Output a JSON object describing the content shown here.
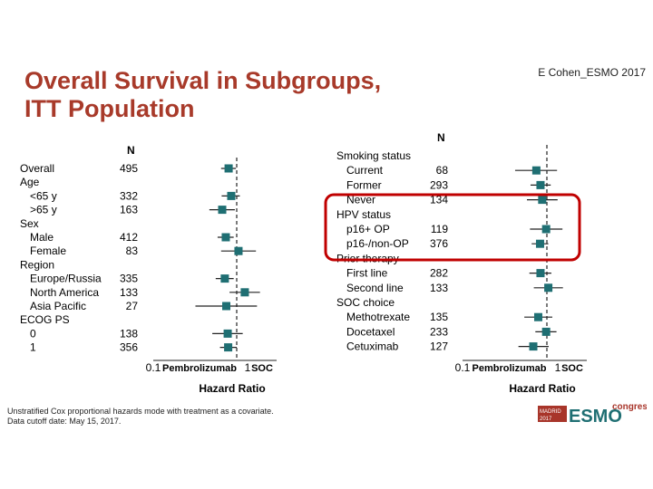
{
  "slide": {
    "title_line1": "Overall Survival in Subgroups,",
    "title_line2": "ITT Population",
    "credit": "E Cohen_ESMO 2017",
    "footnote_line1": "Unstratified Cox proportional hazards mode with treatment as a covariate.",
    "footnote_line2": "Data cutoff date: May 15, 2017."
  },
  "logo": {
    "madrid": "MADRID",
    "year": "2017",
    "esmo": "ESMO",
    "congress": "congress",
    "colors": {
      "red": "#a8352a",
      "teal": "#1f6f73"
    }
  },
  "colors": {
    "marker": "#1f6f73",
    "highlight_box": "#c00000",
    "title": "#a83a2a"
  },
  "chart_data": [
    {
      "type": "forest",
      "n_header": "N",
      "xscale": "log",
      "xlim": [
        0.1,
        2
      ],
      "reference_line": 1,
      "ticks": [
        "0.1",
        "Pembrolizumab",
        "1",
        "SOC"
      ],
      "xlabel": "Hazard Ratio",
      "rows": [
        {
          "label": "Overall",
          "n": "495",
          "hr": 0.8,
          "lo": 0.65,
          "hi": 0.98,
          "indent": false
        },
        {
          "label": "Age",
          "n": "",
          "hr": null,
          "indent": false
        },
        {
          "label": "<65 y",
          "n": "332",
          "hr": 0.86,
          "lo": 0.66,
          "hi": 1.09,
          "indent": true
        },
        {
          "label": ">65 y",
          "n": "163",
          "hr": 0.67,
          "lo": 0.47,
          "hi": 0.95,
          "indent": true
        },
        {
          "label": "Sex",
          "n": "",
          "hr": null,
          "indent": false
        },
        {
          "label": "Male",
          "n": "412",
          "hr": 0.74,
          "lo": 0.59,
          "hi": 0.92,
          "indent": true
        },
        {
          "label": "Female",
          "n": "83",
          "hr": 1.05,
          "lo": 0.65,
          "hi": 1.7,
          "indent": true
        },
        {
          "label": "Region",
          "n": "",
          "hr": null,
          "indent": false
        },
        {
          "label": "Europe/Russia",
          "n": "335",
          "hr": 0.72,
          "lo": 0.56,
          "hi": 0.92,
          "indent": true
        },
        {
          "label": "North America",
          "n": "133",
          "hr": 1.25,
          "lo": 0.82,
          "hi": 1.9,
          "indent": true
        },
        {
          "label": "Asia Pacific",
          "n": "27",
          "hr": 0.75,
          "lo": 0.32,
          "hi": 1.75,
          "indent": true
        },
        {
          "label": "ECOG PS",
          "n": "",
          "hr": null,
          "indent": false
        },
        {
          "label": "0",
          "n": "138",
          "hr": 0.78,
          "lo": 0.51,
          "hi": 1.18,
          "indent": true
        },
        {
          "label": "1",
          "n": "356",
          "hr": 0.79,
          "lo": 0.63,
          "hi": 1.0,
          "indent": true
        }
      ]
    },
    {
      "type": "forest",
      "n_header": "N",
      "xscale": "log",
      "xlim": [
        0.1,
        2
      ],
      "reference_line": 1,
      "ticks": [
        "0.1",
        "Pembrolizumab",
        "1",
        "SOC"
      ],
      "xlabel": "Hazard Ratio",
      "rows": [
        {
          "label": "Smoking status",
          "n": "",
          "hr": null,
          "indent": false
        },
        {
          "label": "Current",
          "n": "68",
          "hr": 0.75,
          "lo": 0.42,
          "hi": 1.32,
          "indent": true
        },
        {
          "label": "Former",
          "n": "293",
          "hr": 0.84,
          "lo": 0.64,
          "hi": 1.11,
          "indent": true
        },
        {
          "label": "Never",
          "n": "134",
          "hr": 0.88,
          "lo": 0.58,
          "hi": 1.34,
          "indent": true
        },
        {
          "label": "HPV status",
          "n": "",
          "hr": null,
          "indent": false
        },
        {
          "label": "p16+ OP",
          "n": "119",
          "hr": 0.98,
          "lo": 0.63,
          "hi": 1.53,
          "indent": true
        },
        {
          "label": "p16-/non-OP",
          "n": "376",
          "hr": 0.83,
          "lo": 0.66,
          "hi": 1.04,
          "indent": true
        },
        {
          "label": "Prior therapy",
          "n": "",
          "hr": null,
          "indent": false
        },
        {
          "label": "First line",
          "n": "282",
          "hr": 0.84,
          "lo": 0.62,
          "hi": 1.13,
          "indent": true
        },
        {
          "label": "Second line",
          "n": "133",
          "hr": 1.04,
          "lo": 0.7,
          "hi": 1.55,
          "indent": true
        },
        {
          "label": "SOC choice",
          "n": "",
          "hr": null,
          "indent": false
        },
        {
          "label": "Methotrexate",
          "n": "135",
          "hr": 0.79,
          "lo": 0.54,
          "hi": 1.16,
          "indent": true
        },
        {
          "label": "Docetaxel",
          "n": "233",
          "hr": 0.98,
          "lo": 0.73,
          "hi": 1.3,
          "indent": true
        },
        {
          "label": "Cetuximab",
          "n": "127",
          "hr": 0.69,
          "lo": 0.46,
          "hi": 1.05,
          "indent": true
        }
      ]
    }
  ]
}
